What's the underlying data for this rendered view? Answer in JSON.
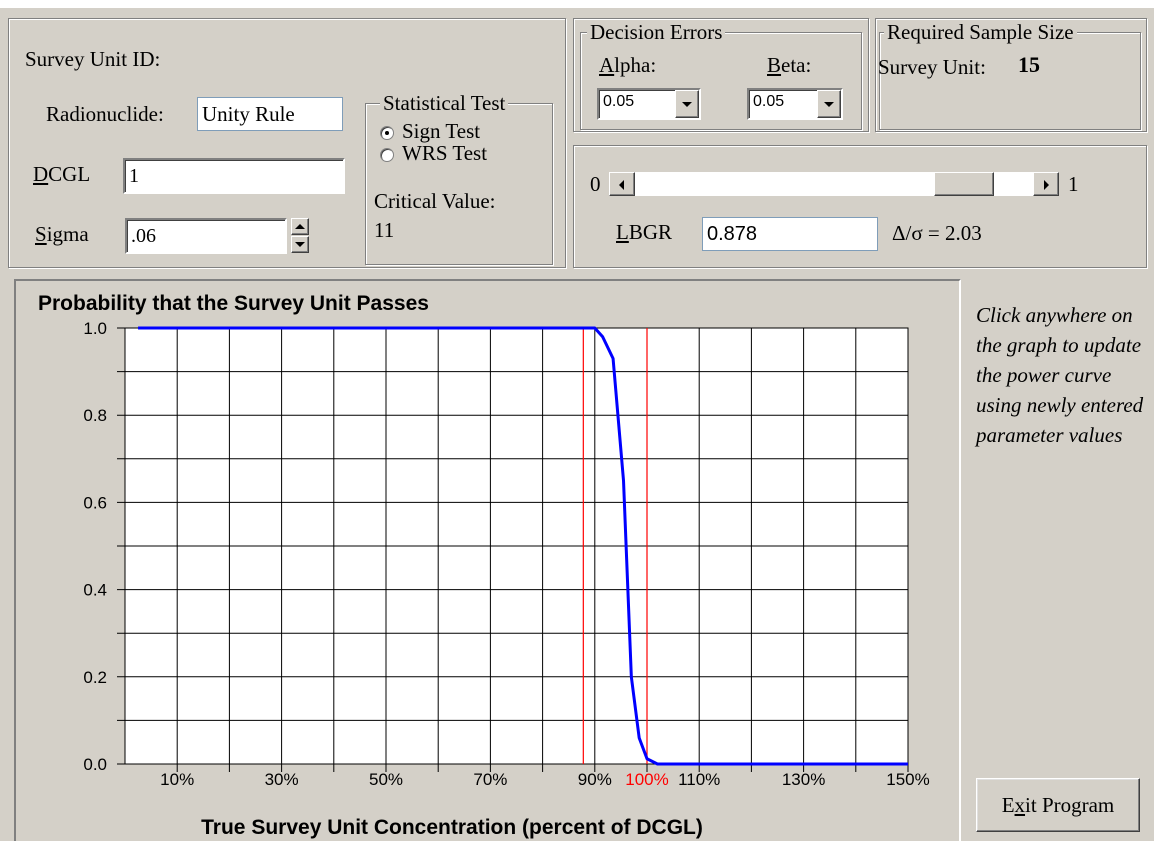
{
  "survey": {
    "unit_id_label": "Survey Unit ID:",
    "radionuclide_label": "Radionuclide:",
    "radionuclide_value": "Unity Rule",
    "dcgl_label_first": "D",
    "dcgl_label_rest": "CGL",
    "dcgl_value": "1",
    "sigma_label_first": "S",
    "sigma_label_rest": "igma",
    "sigma_value": ".06"
  },
  "statistical_test": {
    "legend": "Statistical Test",
    "options": [
      {
        "label": "Sign Test",
        "selected": true
      },
      {
        "label": "WRS Test",
        "selected": false
      }
    ],
    "critical_value_label": "Critical Value:",
    "critical_value": "11"
  },
  "decision_errors": {
    "legend": "Decision Errors",
    "alpha_label_first": "A",
    "alpha_label_rest": "lpha:",
    "alpha_value": "0.05",
    "beta_label_first": "B",
    "beta_label_rest": "eta:",
    "beta_value": "0.05"
  },
  "sample_size": {
    "legend": "Required Sample Size",
    "label": "Survey Unit:",
    "value": "15"
  },
  "lbgr": {
    "slider_min_label": "0",
    "slider_max_label": "1",
    "slider_value": 0.878,
    "label_first": "L",
    "label_rest": "BGR",
    "value": "0.878",
    "delta_sigma": "Δ/σ = 2.03"
  },
  "hint_text": "Click anywhere on the graph to update the power curve using newly entered parameter values",
  "exit_button": {
    "label_first": "E",
    "label_u": "x",
    "label_rest": "it Program"
  },
  "chart_data": {
    "type": "line",
    "title": "Probability that the Survey Unit Passes",
    "xlabel": "True Survey Unit Concentration (percent of DCGL)",
    "ylabel": "",
    "xlim": [
      0,
      150
    ],
    "ylim": [
      0,
      1
    ],
    "grid": true,
    "x_tick_labels": [
      {
        "x": 10,
        "label": "10%"
      },
      {
        "x": 30,
        "label": "30%"
      },
      {
        "x": 50,
        "label": "50%"
      },
      {
        "x": 70,
        "label": "70%"
      },
      {
        "x": 90,
        "label": "90%"
      },
      {
        "x": 100,
        "label": "100%",
        "color": "#ff0000"
      },
      {
        "x": 110,
        "label": "110%"
      },
      {
        "x": 130,
        "label": "130%"
      },
      {
        "x": 150,
        "label": "150%"
      }
    ],
    "y_tick_labels": [
      "0.0",
      "0.2",
      "0.4",
      "0.6",
      "0.8",
      "1.0"
    ],
    "reference_lines": [
      {
        "x": 87.8,
        "color": "#ff0000"
      },
      {
        "x": 100,
        "color": "#ff0000"
      }
    ],
    "series": [
      {
        "color": "#0000ff",
        "x": [
          2.5,
          88,
          90,
          91.5,
          93.5,
          95.5,
          97,
          98.5,
          100,
          102,
          150
        ],
        "y": [
          1.0,
          1.0,
          1.0,
          0.98,
          0.93,
          0.65,
          0.2,
          0.06,
          0.012,
          0.0,
          0.0
        ]
      }
    ]
  }
}
